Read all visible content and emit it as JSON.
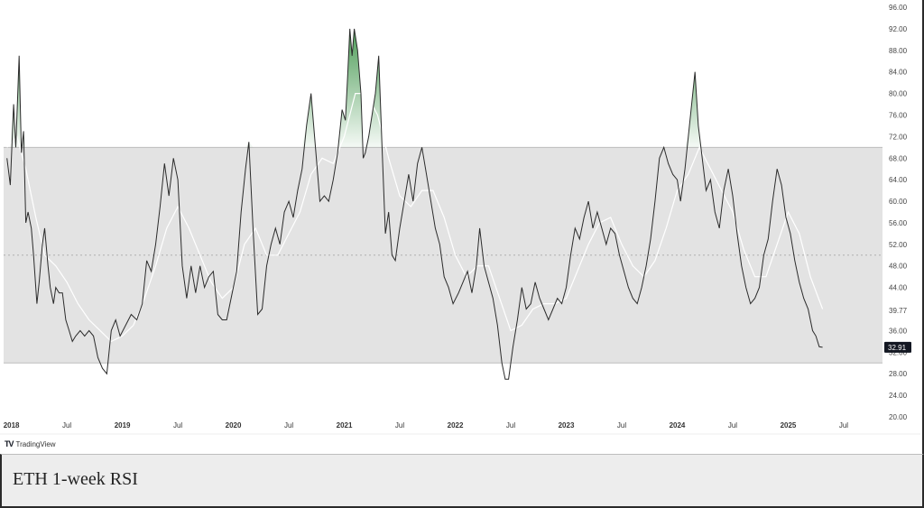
{
  "caption": "ETH 1-week RSI",
  "brand": {
    "logo": "TV",
    "name": "TradingView"
  },
  "chart_data": {
    "type": "line",
    "ylim": [
      20,
      96
    ],
    "yticks": [
      "96.00",
      "92.00",
      "88.00",
      "84.00",
      "80.00",
      "76.00",
      "72.00",
      "68.00",
      "64.00",
      "60.00",
      "56.00",
      "52.00",
      "48.00",
      "44.00",
      "39.77",
      "36.00",
      "32.00",
      "28.00",
      "24.00",
      "20.00"
    ],
    "xticks": [
      {
        "label": "2018",
        "x": 2018.0,
        "bold": true
      },
      {
        "label": "Jul",
        "x": 2018.5,
        "bold": false
      },
      {
        "label": "2019",
        "x": 2019.0,
        "bold": true
      },
      {
        "label": "Jul",
        "x": 2019.5,
        "bold": false
      },
      {
        "label": "2020",
        "x": 2020.0,
        "bold": true
      },
      {
        "label": "Jul",
        "x": 2020.5,
        "bold": false
      },
      {
        "label": "2021",
        "x": 2021.0,
        "bold": true
      },
      {
        "label": "Jul",
        "x": 2021.5,
        "bold": false
      },
      {
        "label": "2022",
        "x": 2022.0,
        "bold": true
      },
      {
        "label": "Jul",
        "x": 2022.5,
        "bold": false
      },
      {
        "label": "2023",
        "x": 2023.0,
        "bold": true
      },
      {
        "label": "Jul",
        "x": 2023.5,
        "bold": false
      },
      {
        "label": "2024",
        "x": 2024.0,
        "bold": true
      },
      {
        "label": "Jul",
        "x": 2024.5,
        "bold": false
      },
      {
        "label": "2025",
        "x": 2025.0,
        "bold": true
      },
      {
        "label": "Jul",
        "x": 2025.5,
        "bold": false
      }
    ],
    "xlim": [
      2017.93,
      2025.85
    ],
    "bands": {
      "upper": 70,
      "middle": 50,
      "lower": 30
    },
    "current_value": "32.91",
    "series": [
      {
        "role": "rsi",
        "points": [
          [
            2017.96,
            68
          ],
          [
            2017.99,
            63
          ],
          [
            2018.02,
            78
          ],
          [
            2018.04,
            70
          ],
          [
            2018.07,
            87
          ],
          [
            2018.09,
            69
          ],
          [
            2018.11,
            73
          ],
          [
            2018.13,
            56
          ],
          [
            2018.15,
            58
          ],
          [
            2018.18,
            55
          ],
          [
            2018.2,
            50
          ],
          [
            2018.23,
            41
          ],
          [
            2018.25,
            45
          ],
          [
            2018.28,
            52
          ],
          [
            2018.3,
            55
          ],
          [
            2018.33,
            48
          ],
          [
            2018.35,
            44
          ],
          [
            2018.38,
            41
          ],
          [
            2018.4,
            44
          ],
          [
            2018.43,
            43
          ],
          [
            2018.46,
            43
          ],
          [
            2018.49,
            38
          ],
          [
            2018.52,
            36
          ],
          [
            2018.55,
            34
          ],
          [
            2018.58,
            35
          ],
          [
            2018.62,
            36
          ],
          [
            2018.66,
            35
          ],
          [
            2018.7,
            36
          ],
          [
            2018.74,
            35
          ],
          [
            2018.78,
            31
          ],
          [
            2018.82,
            29
          ],
          [
            2018.86,
            28
          ],
          [
            2018.9,
            36
          ],
          [
            2018.94,
            38
          ],
          [
            2018.98,
            35
          ],
          [
            2019.03,
            37
          ],
          [
            2019.08,
            39
          ],
          [
            2019.13,
            38
          ],
          [
            2019.18,
            41
          ],
          [
            2019.22,
            49
          ],
          [
            2019.26,
            47
          ],
          [
            2019.3,
            52
          ],
          [
            2019.34,
            59
          ],
          [
            2019.38,
            67
          ],
          [
            2019.42,
            61
          ],
          [
            2019.46,
            68
          ],
          [
            2019.5,
            64
          ],
          [
            2019.54,
            48
          ],
          [
            2019.58,
            42
          ],
          [
            2019.62,
            48
          ],
          [
            2019.66,
            43
          ],
          [
            2019.7,
            48
          ],
          [
            2019.74,
            44
          ],
          [
            2019.78,
            46
          ],
          [
            2019.82,
            47
          ],
          [
            2019.86,
            39
          ],
          [
            2019.9,
            38
          ],
          [
            2019.94,
            38
          ],
          [
            2019.98,
            42
          ],
          [
            2020.03,
            47
          ],
          [
            2020.07,
            58
          ],
          [
            2020.11,
            66
          ],
          [
            2020.14,
            71
          ],
          [
            2020.18,
            54
          ],
          [
            2020.22,
            39
          ],
          [
            2020.26,
            40
          ],
          [
            2020.3,
            48
          ],
          [
            2020.34,
            52
          ],
          [
            2020.38,
            55
          ],
          [
            2020.42,
            52
          ],
          [
            2020.46,
            58
          ],
          [
            2020.5,
            60
          ],
          [
            2020.54,
            57
          ],
          [
            2020.58,
            62
          ],
          [
            2020.62,
            66
          ],
          [
            2020.66,
            74
          ],
          [
            2020.7,
            80
          ],
          [
            2020.74,
            70
          ],
          [
            2020.78,
            60
          ],
          [
            2020.82,
            61
          ],
          [
            2020.86,
            60
          ],
          [
            2020.9,
            64
          ],
          [
            2020.94,
            69
          ],
          [
            2020.98,
            77
          ],
          [
            2021.01,
            75
          ],
          [
            2021.03,
            83
          ],
          [
            2021.05,
            92
          ],
          [
            2021.07,
            87
          ],
          [
            2021.09,
            92
          ],
          [
            2021.12,
            88
          ],
          [
            2021.15,
            80
          ],
          [
            2021.17,
            68
          ],
          [
            2021.19,
            69
          ],
          [
            2021.22,
            72
          ],
          [
            2021.25,
            76
          ],
          [
            2021.28,
            80
          ],
          [
            2021.31,
            87
          ],
          [
            2021.34,
            70
          ],
          [
            2021.37,
            54
          ],
          [
            2021.4,
            58
          ],
          [
            2021.43,
            50
          ],
          [
            2021.46,
            49
          ],
          [
            2021.5,
            55
          ],
          [
            2021.54,
            60
          ],
          [
            2021.58,
            65
          ],
          [
            2021.62,
            60
          ],
          [
            2021.66,
            67
          ],
          [
            2021.7,
            70
          ],
          [
            2021.74,
            65
          ],
          [
            2021.78,
            60
          ],
          [
            2021.82,
            55
          ],
          [
            2021.86,
            52
          ],
          [
            2021.9,
            46
          ],
          [
            2021.94,
            44
          ],
          [
            2021.98,
            41
          ],
          [
            2022.03,
            43
          ],
          [
            2022.07,
            45
          ],
          [
            2022.11,
            47
          ],
          [
            2022.15,
            43
          ],
          [
            2022.19,
            48
          ],
          [
            2022.22,
            55
          ],
          [
            2022.26,
            48
          ],
          [
            2022.3,
            45
          ],
          [
            2022.34,
            42
          ],
          [
            2022.38,
            37
          ],
          [
            2022.42,
            30
          ],
          [
            2022.45,
            27
          ],
          [
            2022.48,
            27
          ],
          [
            2022.52,
            33
          ],
          [
            2022.56,
            38
          ],
          [
            2022.6,
            44
          ],
          [
            2022.64,
            40
          ],
          [
            2022.68,
            41
          ],
          [
            2022.72,
            45
          ],
          [
            2022.76,
            42
          ],
          [
            2022.8,
            40
          ],
          [
            2022.84,
            38
          ],
          [
            2022.88,
            40
          ],
          [
            2022.92,
            42
          ],
          [
            2022.96,
            41
          ],
          [
            2023.0,
            44
          ],
          [
            2023.04,
            50
          ],
          [
            2023.08,
            55
          ],
          [
            2023.12,
            53
          ],
          [
            2023.16,
            57
          ],
          [
            2023.2,
            60
          ],
          [
            2023.24,
            55
          ],
          [
            2023.28,
            58
          ],
          [
            2023.32,
            55
          ],
          [
            2023.36,
            52
          ],
          [
            2023.4,
            55
          ],
          [
            2023.44,
            54
          ],
          [
            2023.48,
            50
          ],
          [
            2023.52,
            47
          ],
          [
            2023.56,
            44
          ],
          [
            2023.6,
            42
          ],
          [
            2023.64,
            41
          ],
          [
            2023.68,
            44
          ],
          [
            2023.72,
            48
          ],
          [
            2023.76,
            53
          ],
          [
            2023.8,
            60
          ],
          [
            2023.84,
            68
          ],
          [
            2023.88,
            70
          ],
          [
            2023.92,
            67
          ],
          [
            2023.96,
            65
          ],
          [
            2024.0,
            64
          ],
          [
            2024.03,
            60
          ],
          [
            2024.07,
            66
          ],
          [
            2024.1,
            72
          ],
          [
            2024.13,
            78
          ],
          [
            2024.16,
            84
          ],
          [
            2024.19,
            74
          ],
          [
            2024.22,
            69
          ],
          [
            2024.26,
            62
          ],
          [
            2024.3,
            64
          ],
          [
            2024.34,
            58
          ],
          [
            2024.38,
            55
          ],
          [
            2024.42,
            62
          ],
          [
            2024.46,
            66
          ],
          [
            2024.5,
            61
          ],
          [
            2024.54,
            54
          ],
          [
            2024.58,
            48
          ],
          [
            2024.62,
            44
          ],
          [
            2024.66,
            41
          ],
          [
            2024.7,
            42
          ],
          [
            2024.74,
            44
          ],
          [
            2024.78,
            50
          ],
          [
            2024.82,
            53
          ],
          [
            2024.86,
            60
          ],
          [
            2024.9,
            66
          ],
          [
            2024.94,
            63
          ],
          [
            2024.98,
            57
          ],
          [
            2025.02,
            54
          ],
          [
            2025.06,
            49
          ],
          [
            2025.1,
            45
          ],
          [
            2025.14,
            42
          ],
          [
            2025.18,
            40
          ],
          [
            2025.22,
            36
          ],
          [
            2025.25,
            35
          ],
          [
            2025.28,
            33
          ],
          [
            2025.31,
            32.91
          ]
        ]
      },
      {
        "role": "rsi-ma",
        "points": [
          [
            2017.96,
            70
          ],
          [
            2018.05,
            72
          ],
          [
            2018.13,
            66
          ],
          [
            2018.22,
            57
          ],
          [
            2018.3,
            50
          ],
          [
            2018.4,
            48
          ],
          [
            2018.5,
            45
          ],
          [
            2018.6,
            41
          ],
          [
            2018.7,
            38
          ],
          [
            2018.8,
            36
          ],
          [
            2018.9,
            34
          ],
          [
            2019.0,
            35
          ],
          [
            2019.1,
            37
          ],
          [
            2019.2,
            42
          ],
          [
            2019.3,
            48
          ],
          [
            2019.4,
            55
          ],
          [
            2019.5,
            59
          ],
          [
            2019.6,
            55
          ],
          [
            2019.7,
            50
          ],
          [
            2019.8,
            45
          ],
          [
            2019.9,
            42
          ],
          [
            2020.0,
            44
          ],
          [
            2020.1,
            52
          ],
          [
            2020.2,
            55
          ],
          [
            2020.3,
            50
          ],
          [
            2020.4,
            50
          ],
          [
            2020.5,
            54
          ],
          [
            2020.6,
            58
          ],
          [
            2020.7,
            65
          ],
          [
            2020.8,
            68
          ],
          [
            2020.9,
            67
          ],
          [
            2021.0,
            72
          ],
          [
            2021.1,
            80
          ],
          [
            2021.2,
            80
          ],
          [
            2021.3,
            76
          ],
          [
            2021.4,
            68
          ],
          [
            2021.5,
            61
          ],
          [
            2021.6,
            59
          ],
          [
            2021.7,
            62
          ],
          [
            2021.8,
            62
          ],
          [
            2021.9,
            57
          ],
          [
            2022.0,
            50
          ],
          [
            2022.1,
            46
          ],
          [
            2022.2,
            48
          ],
          [
            2022.3,
            48
          ],
          [
            2022.4,
            42
          ],
          [
            2022.5,
            36
          ],
          [
            2022.6,
            37
          ],
          [
            2022.7,
            40
          ],
          [
            2022.8,
            41
          ],
          [
            2022.9,
            41
          ],
          [
            2023.0,
            42
          ],
          [
            2023.1,
            47
          ],
          [
            2023.2,
            52
          ],
          [
            2023.3,
            56
          ],
          [
            2023.4,
            57
          ],
          [
            2023.5,
            52
          ],
          [
            2023.6,
            48
          ],
          [
            2023.7,
            46
          ],
          [
            2023.8,
            49
          ],
          [
            2023.9,
            55
          ],
          [
            2024.0,
            62
          ],
          [
            2024.1,
            65
          ],
          [
            2024.2,
            70
          ],
          [
            2024.3,
            66
          ],
          [
            2024.4,
            62
          ],
          [
            2024.5,
            58
          ],
          [
            2024.6,
            51
          ],
          [
            2024.7,
            46
          ],
          [
            2024.8,
            46
          ],
          [
            2024.9,
            52
          ],
          [
            2025.0,
            58
          ],
          [
            2025.1,
            54
          ],
          [
            2025.2,
            46
          ],
          [
            2025.31,
            40
          ]
        ]
      }
    ]
  }
}
